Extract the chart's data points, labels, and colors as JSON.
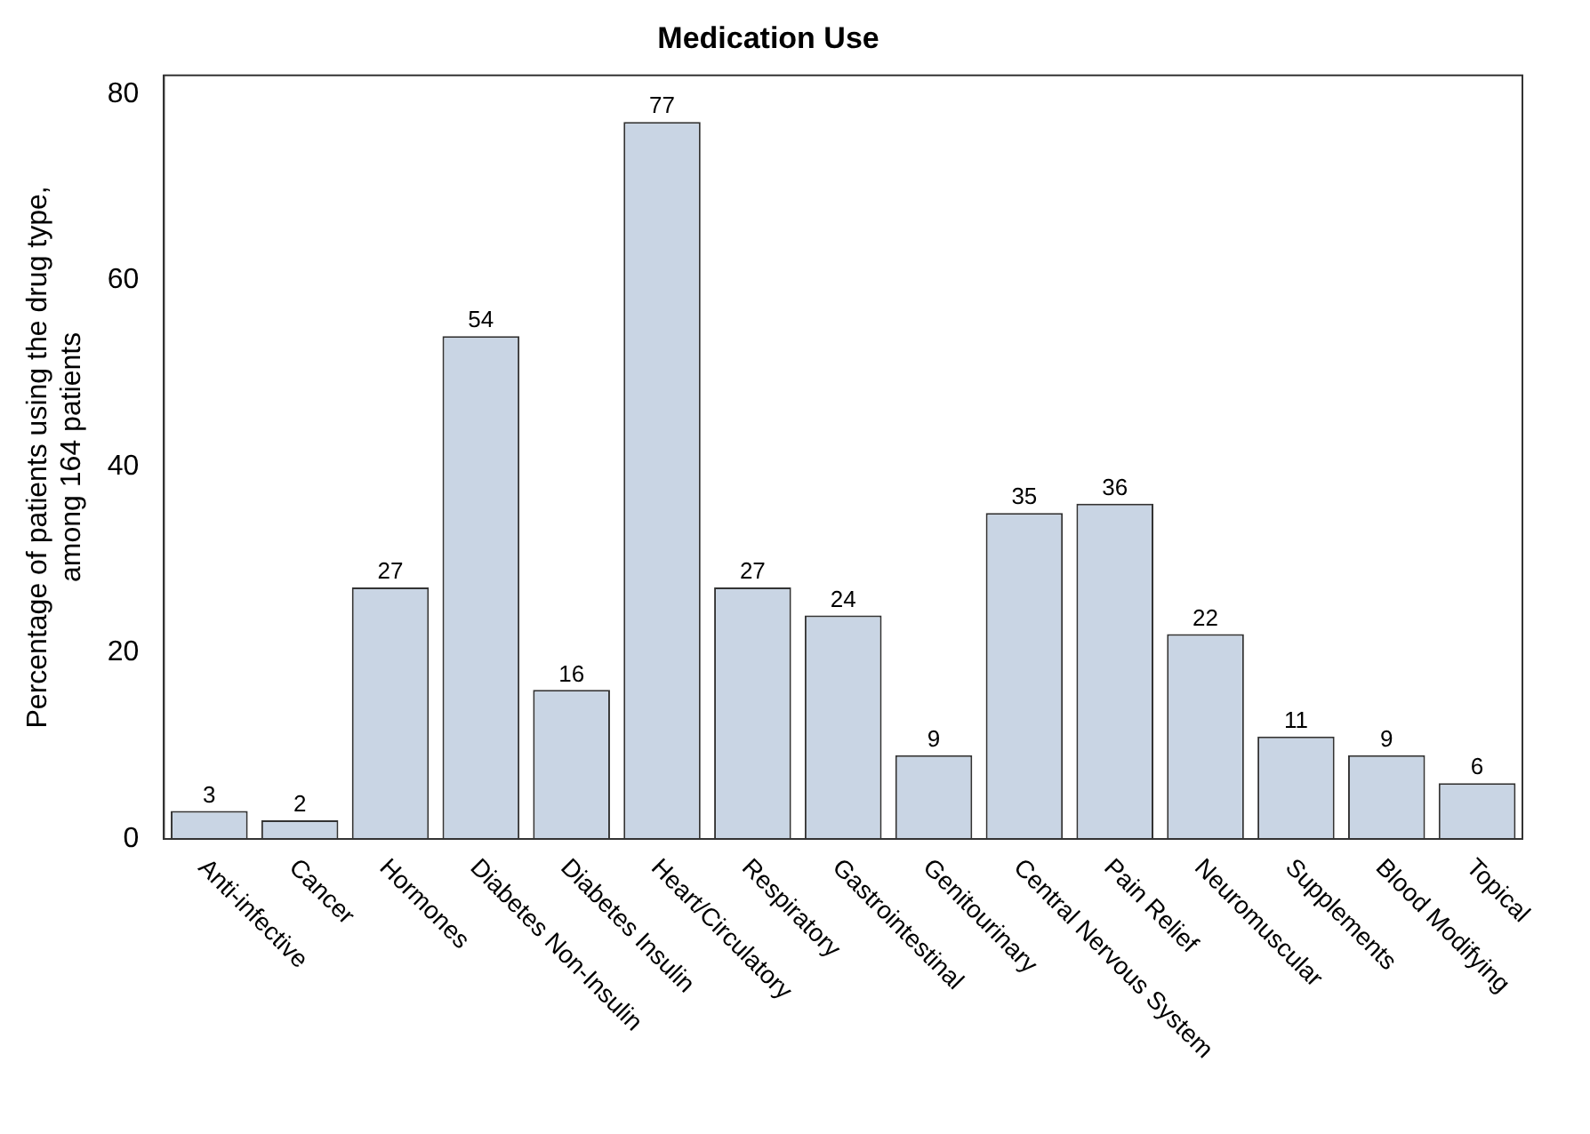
{
  "chart_data": {
    "type": "bar",
    "title": "Medication Use",
    "ylabel": "Percentage of patients using the drug type,\namong 164 patients",
    "categories": [
      "Anti-infective",
      "Cancer",
      "Hormones",
      "Diabetes Non-Insulin",
      "Diabetes Insulin",
      "Heart/Circulatory",
      "Respiratory",
      "Gastrointestinal",
      "Genitourinary",
      "Central Nervous System",
      "Pain Relief",
      "Neuromuscular",
      "Supplements",
      "Blood Modifying",
      "Topical"
    ],
    "values": [
      3,
      2,
      27,
      54,
      16,
      77,
      27,
      24,
      9,
      35,
      36,
      22,
      11,
      9,
      6
    ],
    "color": "#c9d5e4",
    "ylim": [
      0,
      82
    ],
    "yticks": [
      0,
      20,
      40,
      60,
      80
    ],
    "grid": false,
    "legend": false,
    "data_labels": true
  }
}
